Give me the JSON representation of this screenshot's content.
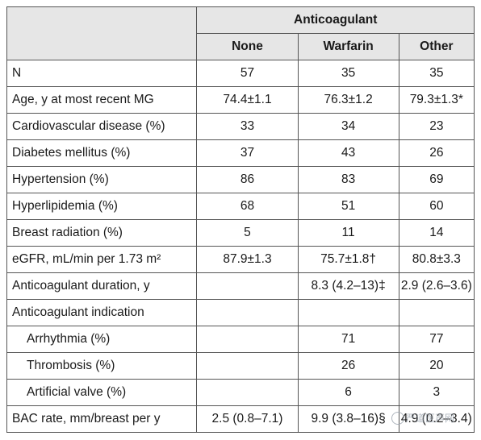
{
  "table": {
    "group_header": "Anticoagulant",
    "columns": [
      "None",
      "Warfarin",
      "Other"
    ],
    "rows": [
      {
        "label": "N",
        "values": [
          "57",
          "35",
          "35"
        ]
      },
      {
        "label": "Age, y at most recent MG",
        "values": [
          "74.4±1.1",
          "76.3±1.2",
          "79.3±1.3*"
        ]
      },
      {
        "label": "Cardiovascular disease (%)",
        "values": [
          "33",
          "34",
          "23"
        ]
      },
      {
        "label": "Diabetes mellitus (%)",
        "values": [
          "37",
          "43",
          "26"
        ]
      },
      {
        "label": "Hypertension (%)",
        "values": [
          "86",
          "83",
          "69"
        ]
      },
      {
        "label": "Hyperlipidemia (%)",
        "values": [
          "68",
          "51",
          "60"
        ]
      },
      {
        "label": "Breast radiation (%)",
        "values": [
          "5",
          "11",
          "14"
        ]
      },
      {
        "label": "eGFR, mL/min per 1.73 m²",
        "values": [
          "87.9±1.3",
          "75.7±1.8†",
          "80.8±3.3"
        ]
      },
      {
        "label": "Anticoagulant duration, y",
        "values": [
          "",
          "8.3 (4.2–13)‡",
          "2.9 (2.6–3.6)"
        ]
      },
      {
        "label": "Anticoagulant indication",
        "values": [
          "",
          "",
          ""
        ]
      },
      {
        "label": "Arrhythmia (%)",
        "values": [
          "",
          "71",
          "77"
        ],
        "indent": true
      },
      {
        "label": "Thrombosis (%)",
        "values": [
          "",
          "26",
          "20"
        ],
        "indent": true
      },
      {
        "label": "Artificial valve (%)",
        "values": [
          "",
          "6",
          "3"
        ],
        "indent": true
      },
      {
        "label": "BAC rate, mm/breast per y",
        "values": [
          "2.5 (0.8–7.1)",
          "9.9 (3.8–16)§",
          "4.9 (0.2–3.4)"
        ]
      }
    ]
  },
  "watermark": {
    "text": "严道医声网",
    "icon": "wechat-icon"
  }
}
